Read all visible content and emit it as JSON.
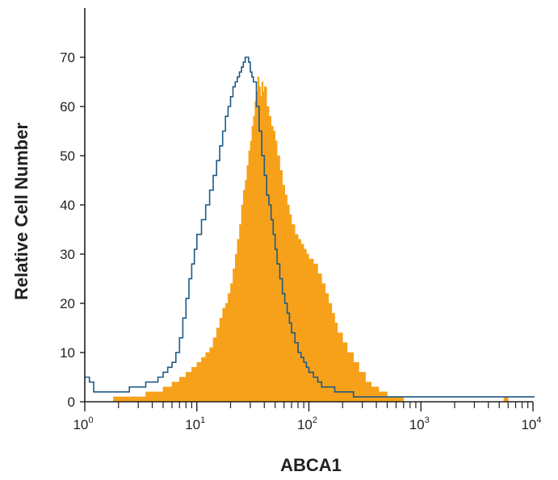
{
  "chart_data": {
    "type": "area",
    "title": "",
    "xlabel": "ABCA1",
    "ylabel": "Relative Cell Number",
    "x_scale": "log",
    "xlim": [
      1,
      10000
    ],
    "ylim": [
      0,
      80
    ],
    "x_ticks": [
      {
        "value": 1,
        "base": "10",
        "exp": "0"
      },
      {
        "value": 10,
        "base": "10",
        "exp": "1"
      },
      {
        "value": 100,
        "base": "10",
        "exp": "2"
      },
      {
        "value": 1000,
        "base": "10",
        "exp": "3"
      },
      {
        "value": 10000,
        "base": "10",
        "exp": "4"
      }
    ],
    "y_ticks": [
      0,
      10,
      20,
      30,
      40,
      50,
      60,
      70
    ],
    "grid": false,
    "legend": "none",
    "series": [
      {
        "style": "filled",
        "color": "#f7a11a",
        "x": [
          1.8,
          2.5,
          3.0,
          3.5,
          4.0,
          5.0,
          6.0,
          7.0,
          8.0,
          9.0,
          10,
          11,
          12,
          13,
          14,
          15,
          16,
          17,
          18,
          19,
          20,
          21,
          22,
          23,
          24,
          25,
          26,
          27,
          28,
          29,
          30,
          31,
          32,
          33,
          34,
          35,
          36,
          37,
          38,
          39,
          40,
          42,
          44,
          46,
          48,
          50,
          52,
          55,
          58,
          61,
          64,
          67,
          70,
          75,
          80,
          85,
          90,
          95,
          100,
          110,
          120,
          130,
          140,
          150,
          160,
          170,
          180,
          200,
          220,
          250,
          280,
          320,
          360,
          420,
          500,
          600,
          700,
          1000,
          2000,
          4000,
          5500,
          6000
        ],
        "y": [
          1,
          1,
          1,
          2,
          2,
          3,
          4,
          5,
          6,
          7,
          8,
          9,
          10,
          11,
          13,
          15,
          17,
          19,
          20,
          22,
          24,
          27,
          30,
          33,
          36,
          40,
          43,
          45,
          48,
          51,
          53,
          56,
          58,
          61,
          63,
          66,
          64,
          62,
          65,
          63,
          64,
          60,
          58,
          56,
          55,
          53,
          50,
          47,
          44,
          42,
          40,
          38,
          36,
          34,
          33,
          32,
          31,
          30,
          29,
          28,
          26,
          24,
          22,
          20,
          18,
          16,
          14,
          12,
          10,
          8,
          6,
          4,
          3,
          2,
          1,
          1,
          0,
          0,
          0,
          0,
          1,
          0
        ]
      },
      {
        "style": "outline",
        "color": "#1d5a85",
        "x": [
          1.0,
          1.1,
          1.2,
          1.5,
          2.0,
          2.5,
          3.0,
          3.5,
          4.0,
          4.5,
          5.0,
          5.5,
          6.0,
          6.5,
          7.0,
          7.5,
          8.0,
          8.5,
          9.0,
          9.5,
          10,
          11,
          12,
          13,
          14,
          15,
          16,
          17,
          18,
          19,
          20,
          21,
          22,
          23,
          24,
          25,
          26,
          27,
          28,
          29,
          30,
          31,
          32,
          34,
          36,
          38,
          40,
          42,
          44,
          46,
          48,
          50,
          52,
          55,
          58,
          61,
          64,
          67,
          70,
          75,
          80,
          85,
          90,
          95,
          100,
          110,
          120,
          130,
          140,
          150,
          170,
          200,
          250,
          300,
          400,
          500,
          700,
          1000,
          2000,
          5000,
          10000
        ],
        "y": [
          5,
          4,
          2,
          2,
          2,
          3,
          3,
          4,
          4,
          5,
          6,
          7,
          8,
          10,
          13,
          17,
          21,
          25,
          28,
          31,
          34,
          37,
          40,
          43,
          46,
          49,
          52,
          55,
          58,
          60,
          62,
          64,
          65,
          66,
          67,
          68,
          69,
          70,
          70,
          69,
          67,
          66,
          65,
          60,
          55,
          50,
          46,
          42,
          40,
          37,
          34,
          31,
          28,
          25,
          22,
          20,
          18,
          16,
          14,
          12,
          10,
          9,
          8,
          7,
          6,
          5,
          4,
          3,
          3,
          3,
          2,
          2,
          1,
          1,
          1,
          1,
          1,
          1,
          1,
          1,
          1
        ]
      }
    ]
  }
}
